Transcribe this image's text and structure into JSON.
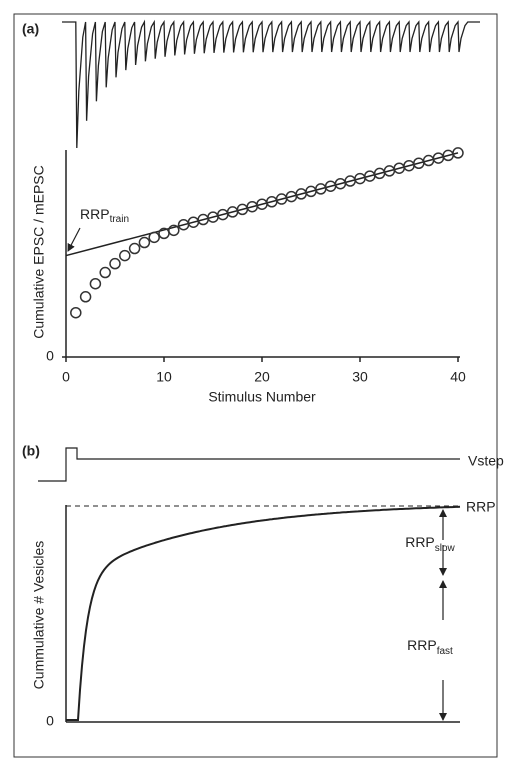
{
  "chart_data": {
    "type": "scatter",
    "panel_label": "(a)",
    "x_label": "Stimulus Number",
    "y_label": "Cumulative EPSC / mEPSC",
    "x": [
      1,
      2,
      3,
      4,
      5,
      6,
      7,
      8,
      9,
      10,
      11,
      12,
      13,
      14,
      15,
      16,
      17,
      18,
      19,
      20,
      21,
      22,
      23,
      24,
      25,
      26,
      27,
      28,
      29,
      30,
      31,
      32,
      33,
      34,
      35,
      36,
      37,
      38,
      39,
      40
    ],
    "values": [
      21.4,
      29.1,
      35.4,
      40.8,
      45.1,
      49,
      52.4,
      55.3,
      57.8,
      59.7,
      61.2,
      63.9,
      65.1,
      66.4,
      67.6,
      68.8,
      70.1,
      71.3,
      72.6,
      73.8,
      75,
      76.3,
      77.5,
      78.8,
      80,
      81.2,
      82.5,
      83.7,
      85,
      86.2,
      87.4,
      88.7,
      89.9,
      91.2,
      92.4,
      93.6,
      94.9,
      96.1,
      97.4,
      98.6
    ],
    "color": "#333333",
    "xlim": [
      0,
      40
    ],
    "xticks": [
      0,
      10,
      20,
      30,
      40
    ],
    "ylim": [
      0,
      100
    ],
    "yticks": [
      0
    ],
    "fit_line": {
      "x": [
        0,
        40
      ],
      "values": [
        49,
        98.6
      ]
    },
    "annotation": {
      "text": "RRP",
      "subscript": "train"
    }
  },
  "panel_b": {
    "label": "(b)",
    "y_label": "Cummulative # Vesicles",
    "y_tick": "0",
    "vstep_label": "Vstep",
    "rrp": "RRP",
    "rrp_slow": {
      "text": "RRP",
      "subscript": "slow"
    },
    "rrp_fast": {
      "text": "RRP",
      "subscript": "fast"
    }
  }
}
